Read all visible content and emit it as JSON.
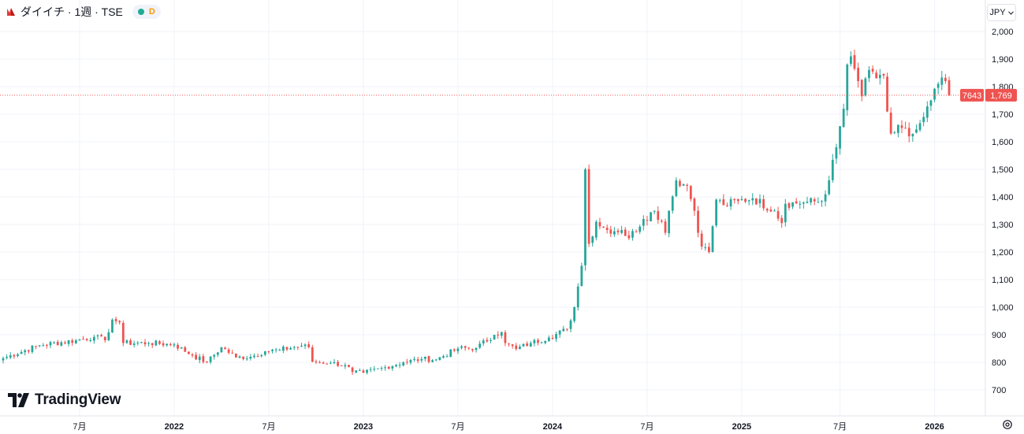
{
  "header": {
    "symbol_label": "ダイイチ · 1週 · TSE",
    "status_badge": "D",
    "logo_icon": "broker-logo-icon",
    "status_dot_icon": "market-status-dot-icon"
  },
  "currency": {
    "label": "JPY",
    "icon": "chevron-down-icon"
  },
  "brand": {
    "name": "TradingView",
    "icon": "tradingview-logo-icon"
  },
  "settings": {
    "icon": "gear-icon"
  },
  "colors": {
    "up": "#26a69a",
    "down": "#ef5350",
    "grid": "#f0f3fa",
    "price_line": "#ef5350",
    "text": "#131722"
  },
  "price_tag": {
    "code": "7643",
    "price": "1,769",
    "value": 1769
  },
  "chart_data": {
    "type": "candlestick",
    "interval": "weekly",
    "ylim": [
      650,
      2030
    ],
    "y_ticks": [
      {
        "value": 700,
        "label": "700"
      },
      {
        "value": 800,
        "label": "800"
      },
      {
        "value": 900,
        "label": "900"
      },
      {
        "value": 1000,
        "label": "1,000"
      },
      {
        "value": 1100,
        "label": "1,100"
      },
      {
        "value": 1200,
        "label": "1,200"
      },
      {
        "value": 1300,
        "label": "1,300"
      },
      {
        "value": 1400,
        "label": "1,400"
      },
      {
        "value": 1500,
        "label": "1,500"
      },
      {
        "value": 1600,
        "label": "1,600"
      },
      {
        "value": 1700,
        "label": "1,700"
      },
      {
        "value": 1800,
        "label": "1,800"
      },
      {
        "value": 1900,
        "label": "1,900"
      },
      {
        "value": 2000,
        "label": "2,000"
      }
    ],
    "x_ticks": [
      {
        "week": 21,
        "label": "7月",
        "bold": false
      },
      {
        "week": 47,
        "label": "2022",
        "bold": true
      },
      {
        "week": 73,
        "label": "7月",
        "bold": false
      },
      {
        "week": 99,
        "label": "2023",
        "bold": true
      },
      {
        "week": 125,
        "label": "7月",
        "bold": false
      },
      {
        "week": 151,
        "label": "2024",
        "bold": true
      },
      {
        "week": 177,
        "label": "7月",
        "bold": false
      },
      {
        "week": 203,
        "label": "2025",
        "bold": true
      },
      {
        "week": 230,
        "label": "7月",
        "bold": false
      },
      {
        "week": 256,
        "label": "2026",
        "bold": true
      }
    ],
    "anchors": [
      [
        0,
        815
      ],
      [
        10,
        862
      ],
      [
        20,
        880
      ],
      [
        25,
        892
      ],
      [
        28,
        880
      ],
      [
        30,
        955
      ],
      [
        32,
        945
      ],
      [
        33,
        870
      ],
      [
        40,
        870
      ],
      [
        47,
        865
      ],
      [
        52,
        825
      ],
      [
        56,
        800
      ],
      [
        60,
        855
      ],
      [
        64,
        818
      ],
      [
        68,
        820
      ],
      [
        72,
        840
      ],
      [
        76,
        845
      ],
      [
        82,
        860
      ],
      [
        84,
        855
      ],
      [
        85,
        802
      ],
      [
        90,
        798
      ],
      [
        94,
        790
      ],
      [
        96,
        765
      ],
      [
        99,
        762
      ],
      [
        105,
        782
      ],
      [
        110,
        800
      ],
      [
        115,
        812
      ],
      [
        119,
        810
      ],
      [
        125,
        850
      ],
      [
        130,
        852
      ],
      [
        135,
        900
      ],
      [
        137,
        910
      ],
      [
        138,
        870
      ],
      [
        141,
        848
      ],
      [
        145,
        870
      ],
      [
        150,
        890
      ],
      [
        155,
        920
      ],
      [
        157,
        1000
      ],
      [
        159,
        1150
      ],
      [
        160,
        1500
      ],
      [
        161,
        1230
      ],
      [
        163,
        1310
      ],
      [
        166,
        1280
      ],
      [
        170,
        1280
      ],
      [
        172,
        1250
      ],
      [
        176,
        1320
      ],
      [
        179,
        1350
      ],
      [
        181,
        1310
      ],
      [
        182,
        1270
      ],
      [
        183,
        1350
      ],
      [
        185,
        1460
      ],
      [
        188,
        1440
      ],
      [
        190,
        1350
      ],
      [
        192,
        1220
      ],
      [
        194,
        1200
      ],
      [
        196,
        1390
      ],
      [
        198,
        1370
      ],
      [
        202,
        1385
      ],
      [
        206,
        1395
      ],
      [
        212,
        1350
      ],
      [
        214,
        1305
      ],
      [
        215,
        1375
      ],
      [
        220,
        1380
      ],
      [
        225,
        1385
      ],
      [
        227,
        1460
      ],
      [
        229,
        1580
      ],
      [
        231,
        1720
      ],
      [
        232,
        1880
      ],
      [
        233,
        1910
      ],
      [
        235,
        1820
      ],
      [
        236,
        1765
      ],
      [
        237,
        1830
      ],
      [
        239,
        1855
      ],
      [
        240,
        1830
      ],
      [
        242,
        1840
      ],
      [
        243,
        1710
      ],
      [
        244,
        1630
      ],
      [
        247,
        1650
      ],
      [
        249,
        1620
      ],
      [
        251,
        1645
      ],
      [
        253,
        1690
      ],
      [
        255,
        1750
      ],
      [
        257,
        1810
      ],
      [
        259,
        1820
      ],
      [
        260,
        1769
      ]
    ]
  }
}
